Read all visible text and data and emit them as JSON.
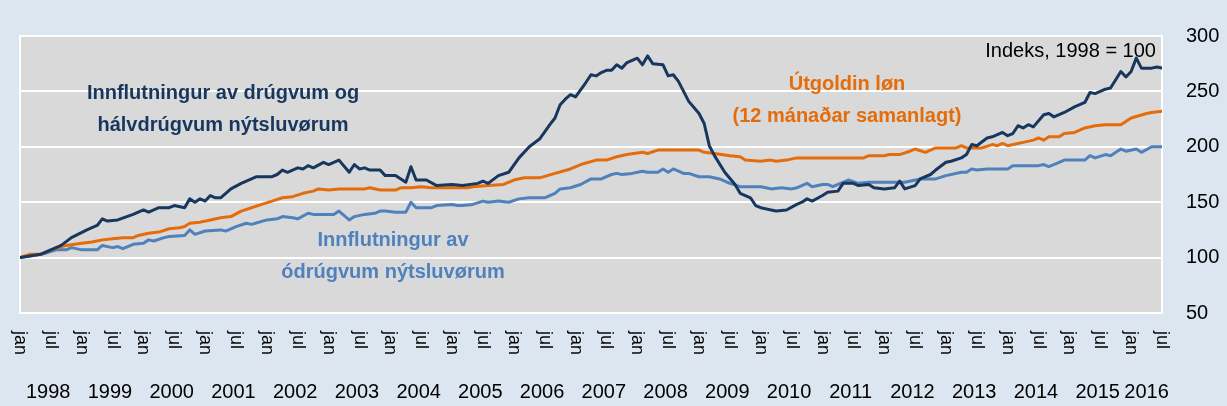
{
  "chart_data": {
    "type": "line",
    "annotations": [
      "Indeks, 1998 = 100"
    ],
    "xlim": [
      "1998-01",
      "2016-07"
    ],
    "xticks": [
      {
        "value": "1998-01",
        "label": "jan"
      },
      {
        "value": "1998-07",
        "label": "jul"
      },
      {
        "value": "1999-01",
        "label": "jan"
      },
      {
        "value": "1999-07",
        "label": "jul"
      },
      {
        "value": "2000-01",
        "label": "jan"
      },
      {
        "value": "2000-07",
        "label": "jul"
      },
      {
        "value": "2001-01",
        "label": "jan"
      },
      {
        "value": "2001-07",
        "label": "jul"
      },
      {
        "value": "2002-01",
        "label": "jan"
      },
      {
        "value": "2002-07",
        "label": "jul"
      },
      {
        "value": "2003-01",
        "label": "jan"
      },
      {
        "value": "2003-07",
        "label": "jul"
      },
      {
        "value": "2004-01",
        "label": "jan"
      },
      {
        "value": "2004-07",
        "label": "jul"
      },
      {
        "value": "2005-01",
        "label": "jan"
      },
      {
        "value": "2005-07",
        "label": "jul"
      },
      {
        "value": "2006-01",
        "label": "jan"
      },
      {
        "value": "2006-07",
        "label": "jul"
      },
      {
        "value": "2007-01",
        "label": "jan"
      },
      {
        "value": "2007-07",
        "label": "jul"
      },
      {
        "value": "2008-01",
        "label": "jan"
      },
      {
        "value": "2008-07",
        "label": "jul"
      },
      {
        "value": "2009-01",
        "label": "jan"
      },
      {
        "value": "2009-07",
        "label": "jul"
      },
      {
        "value": "2010-01",
        "label": "jan"
      },
      {
        "value": "2010-07",
        "label": "jul"
      },
      {
        "value": "2011-01",
        "label": "jan"
      },
      {
        "value": "2011-07",
        "label": "jul"
      },
      {
        "value": "2012-01",
        "label": "jan"
      },
      {
        "value": "2012-07",
        "label": "jul"
      },
      {
        "value": "2013-01",
        "label": "jan"
      },
      {
        "value": "2013-07",
        "label": "jul"
      },
      {
        "value": "2014-01",
        "label": "jan"
      },
      {
        "value": "2014-07",
        "label": "jul"
      },
      {
        "value": "2015-01",
        "label": "jan"
      },
      {
        "value": "2015-07",
        "label": "jul"
      },
      {
        "value": "2016-01",
        "label": "jan"
      },
      {
        "value": "2016-07",
        "label": "jul"
      }
    ],
    "x2lim": [
      "1998-01",
      "2016-07"
    ],
    "x2ticks": [
      {
        "value": "1998-06-16",
        "label": "1998"
      },
      {
        "value": "1999-06-16",
        "label": "1999"
      },
      {
        "value": "2000-06-16",
        "label": "2000"
      },
      {
        "value": "2001-06-16",
        "label": "2001"
      },
      {
        "value": "2002-06-16",
        "label": "2002"
      },
      {
        "value": "2003-06-16",
        "label": "2003"
      },
      {
        "value": "2004-06-16",
        "label": "2004"
      },
      {
        "value": "2005-06-16",
        "label": "2005"
      },
      {
        "value": "2006-06-16",
        "label": "2006"
      },
      {
        "value": "2007-06-16",
        "label": "2007"
      },
      {
        "value": "2008-06-16",
        "label": "2008"
      },
      {
        "value": "2009-06-16",
        "label": "2009"
      },
      {
        "value": "2010-06-16",
        "label": "2010"
      },
      {
        "value": "2011-06-16",
        "label": "2011"
      },
      {
        "value": "2012-06-16",
        "label": "2012"
      },
      {
        "value": "2013-06-16",
        "label": "2013"
      },
      {
        "value": "2014-06-16",
        "label": "2014"
      },
      {
        "value": "2015-06-16",
        "label": "2015"
      },
      {
        "value": "2016-04",
        "label": "2016"
      }
    ],
    "ylim": [
      50,
      300
    ],
    "yticks": [
      50,
      100,
      150,
      200,
      250,
      300
    ],
    "grid": "y",
    "marker": "none",
    "line_style": "solid",
    "series": [
      {
        "name": "Innflutningur av drúgvum og\nhálvdrúgvum nýtsluvørum",
        "color": "#17375e",
        "x": [
          "1998-01",
          "1998-05",
          "1998-09",
          "1998-11",
          "1999-02",
          "1999-04",
          "1999-05",
          "1999-06",
          "1999-08",
          "1999-11",
          "2000-01",
          "2000-02",
          "2000-04",
          "2000-06",
          "2000-07",
          "2000-09",
          "2000-10",
          "2000-11",
          "2000-12",
          "2001-01",
          "2001-02",
          "2001-03",
          "2001-04",
          "2001-06",
          "2001-08",
          "2001-10",
          "2001-11",
          "2002-02",
          "2002-03",
          "2002-04",
          "2002-05",
          "2002-07",
          "2002-08",
          "2002-09",
          "2002-10",
          "2002-12",
          "2003-01",
          "2003-03",
          "2003-05",
          "2003-06",
          "2003-07",
          "2003-08",
          "2003-09",
          "2003-11",
          "2003-12",
          "2004-02",
          "2004-04",
          "2004-05",
          "2004-06",
          "2004-08",
          "2004-10",
          "2005-01",
          "2005-03",
          "2005-06",
          "2005-07",
          "2005-08",
          "2005-10",
          "2005-12",
          "2006-02",
          "2006-04",
          "2006-06",
          "2006-08",
          "2006-09",
          "2006-10",
          "2006-11",
          "2006-12",
          "2007-01",
          "2007-03",
          "2007-04",
          "2007-05",
          "2007-06",
          "2007-07",
          "2007-08",
          "2007-09",
          "2007-10",
          "2007-11",
          "2008-01",
          "2008-02",
          "2008-03",
          "2008-04",
          "2008-06",
          "2008-07",
          "2008-08",
          "2008-09",
          "2008-11",
          "2009-01",
          "2009-02",
          "2009-03",
          "2009-04",
          "2009-06",
          "2009-08",
          "2009-09",
          "2009-10",
          "2009-11",
          "2009-12",
          "2010-01",
          "2010-03",
          "2010-04",
          "2010-06",
          "2010-08",
          "2010-09",
          "2010-10",
          "2010-11",
          "2011-01",
          "2011-02",
          "2011-04",
          "2011-05",
          "2011-07",
          "2011-08",
          "2011-10",
          "2011-11",
          "2012-01",
          "2012-03",
          "2012-04",
          "2012-05",
          "2012-07",
          "2012-08",
          "2012-10",
          "2012-11",
          "2013-01",
          "2013-02",
          "2013-04",
          "2013-05",
          "2013-06",
          "2013-07",
          "2013-09",
          "2013-10",
          "2013-12",
          "2014-01",
          "2014-02",
          "2014-03",
          "2014-04",
          "2014-05",
          "2014-06",
          "2014-08",
          "2014-09",
          "2014-10",
          "2014-12",
          "2015-02",
          "2015-04",
          "2015-05",
          "2015-06",
          "2015-08",
          "2015-09",
          "2015-11",
          "2015-12",
          "2016-01",
          "2016-02",
          "2016-03",
          "2016-05",
          "2016-06",
          "2016-07"
        ],
        "values": [
          100,
          103,
          111,
          118,
          125,
          129,
          135,
          133,
          134,
          139,
          143,
          141,
          145,
          145,
          147,
          145,
          153,
          150,
          153,
          151,
          156,
          154,
          154,
          162,
          167,
          171,
          173,
          173,
          175,
          179,
          177,
          181,
          180,
          183,
          181,
          186,
          184,
          188,
          177,
          184,
          180,
          181,
          179,
          179,
          174,
          174,
          168,
          182,
          170,
          170,
          165,
          166,
          165,
          167,
          169,
          167,
          174,
          177,
          190,
          200,
          207,
          220,
          226,
          238,
          243,
          247,
          245,
          258,
          265,
          264,
          267,
          269,
          269,
          274,
          271,
          276,
          280,
          274,
          282,
          275,
          274,
          264,
          265,
          259,
          241,
          230,
          221,
          201,
          192,
          177,
          166,
          158,
          156,
          154,
          147,
          145,
          143,
          142,
          143,
          148,
          150,
          153,
          151,
          156,
          159,
          160,
          167,
          167,
          165,
          166,
          163,
          162,
          163,
          169,
          162,
          165,
          171,
          175,
          179,
          186,
          187,
          190,
          193,
          202,
          201,
          208,
          209,
          213,
          210,
          212,
          219,
          217,
          220,
          218,
          229,
          230,
          227,
          231,
          236,
          240,
          249,
          248,
          252,
          253,
          268,
          263,
          268,
          280,
          271,
          271,
          272,
          271
        ]
      },
      {
        "name": "Útgoldin løn\n(12 mánaðar samanlagt)",
        "color": "#e46c0a",
        "x": [
          "1998-01",
          "1998-03",
          "1998-05",
          "1998-07",
          "1998-10",
          "1999-01",
          "1999-03",
          "1999-05",
          "1999-07",
          "1999-09",
          "1999-11",
          "1999-12",
          "2000-02",
          "2000-04",
          "2000-06",
          "2000-08",
          "2000-09",
          "2000-10",
          "2000-12",
          "2001-02",
          "2001-04",
          "2001-06",
          "2001-08",
          "2001-10",
          "2001-12",
          "2002-02",
          "2002-04",
          "2002-06",
          "2002-08",
          "2002-10",
          "2002-11",
          "2003-01",
          "2003-03",
          "2003-08",
          "2003-09",
          "2003-11",
          "2004-02",
          "2004-03",
          "2004-05",
          "2004-07",
          "2004-09",
          "2004-11",
          "2005-04",
          "2005-05",
          "2005-08",
          "2005-11",
          "2006-01",
          "2006-03",
          "2006-06",
          "2006-09",
          "2006-12",
          "2007-02",
          "2007-05",
          "2007-07",
          "2007-09",
          "2007-11",
          "2008-02",
          "2008-03",
          "2008-05",
          "2009-01",
          "2009-02",
          "2009-04",
          "2009-07",
          "2009-09",
          "2009-10",
          "2010-01",
          "2010-03",
          "2010-04",
          "2010-06",
          "2010-08",
          "2011-09",
          "2011-10",
          "2012-01",
          "2012-02",
          "2012-04",
          "2012-06",
          "2012-07",
          "2012-09",
          "2012-11",
          "2013-03",
          "2013-04",
          "2013-05",
          "2013-08",
          "2013-10",
          "2013-11",
          "2013-12",
          "2014-01",
          "2014-03",
          "2014-04",
          "2014-06",
          "2014-07",
          "2014-08",
          "2014-09",
          "2014-11",
          "2014-12",
          "2015-02",
          "2015-03",
          "2015-04",
          "2015-06",
          "2015-08",
          "2015-11",
          "2016-01",
          "2016-04",
          "2016-05",
          "2016-07"
        ],
        "values": [
          100,
          103,
          103,
          107,
          111,
          113,
          114,
          116,
          117,
          118,
          118,
          120,
          122,
          123,
          126,
          127,
          128,
          131,
          132,
          134,
          136,
          137,
          142,
          145,
          148,
          151,
          154,
          155,
          158,
          160,
          162,
          161,
          162,
          162,
          163,
          161,
          161,
          163,
          163,
          164,
          163,
          163,
          163,
          164,
          165,
          166,
          170,
          172,
          172,
          176,
          180,
          184,
          188,
          188,
          191,
          193,
          195,
          194,
          197,
          197,
          195,
          194,
          192,
          191,
          188,
          187,
          188,
          187,
          188,
          190,
          190,
          192,
          192,
          193,
          193,
          196,
          198,
          195,
          199,
          199,
          201,
          199,
          199,
          202,
          201,
          203,
          201,
          203,
          204,
          206,
          208,
          206,
          209,
          209,
          212,
          213,
          215,
          217,
          219,
          220,
          220,
          226,
          230,
          231,
          232
        ]
      },
      {
        "name": "Innflutningur av\nódrúgvum nýtsluvørum",
        "color": "#4f81bd",
        "x": [
          "1998-01",
          "1998-04",
          "1998-06",
          "1998-08",
          "1998-10",
          "1998-11",
          "1999-01",
          "1999-04",
          "1999-05",
          "1999-07",
          "1999-08",
          "1999-09",
          "1999-11",
          "2000-01",
          "2000-02",
          "2000-03",
          "2000-05",
          "2000-06",
          "2000-09",
          "2000-10",
          "2000-11",
          "2001-01",
          "2001-04",
          "2001-05",
          "2001-07",
          "2001-09",
          "2001-10",
          "2002-01",
          "2002-03",
          "2002-04",
          "2002-06",
          "2002-07",
          "2002-09",
          "2002-10",
          "2003-02",
          "2003-03",
          "2003-05",
          "2003-06",
          "2003-08",
          "2003-10",
          "2003-11",
          "2003-12",
          "2004-02",
          "2004-04",
          "2004-05",
          "2004-06",
          "2004-09",
          "2004-10",
          "2005-01",
          "2005-02",
          "2005-03",
          "2005-05",
          "2005-07",
          "2005-08",
          "2005-10",
          "2005-12",
          "2006-02",
          "2006-04",
          "2006-07",
          "2006-09",
          "2006-10",
          "2006-12",
          "2007-02",
          "2007-04",
          "2007-06",
          "2007-08",
          "2007-09",
          "2007-10",
          "2007-12",
          "2008-02",
          "2008-03",
          "2008-05",
          "2008-06",
          "2008-07",
          "2008-08",
          "2008-10",
          "2008-11",
          "2009-01",
          "2009-03",
          "2009-05",
          "2009-07",
          "2009-09",
          "2010-01",
          "2010-02",
          "2010-03",
          "2010-05",
          "2010-07",
          "2010-08",
          "2010-10",
          "2010-11",
          "2011-01",
          "2011-02",
          "2011-03",
          "2011-06",
          "2011-08",
          "2011-10",
          "2012-05",
          "2012-08",
          "2012-11",
          "2013-01",
          "2013-04",
          "2013-05",
          "2013-06",
          "2013-07",
          "2013-09",
          "2014-01",
          "2014-02",
          "2014-07",
          "2014-08",
          "2014-09",
          "2014-11",
          "2014-12",
          "2015-04",
          "2015-05",
          "2015-06",
          "2015-08",
          "2015-09",
          "2015-11",
          "2015-12",
          "2016-02",
          "2016-03",
          "2016-05",
          "2016-07"
        ],
        "values": [
          100,
          102,
          104,
          107,
          107,
          109,
          107,
          107,
          111,
          109,
          110,
          108,
          112,
          113,
          116,
          115,
          118,
          119,
          120,
          125,
          121,
          124,
          125,
          124,
          128,
          131,
          130,
          134,
          135,
          137,
          136,
          135,
          140,
          139,
          139,
          142,
          134,
          137,
          139,
          140,
          142,
          142,
          141,
          141,
          150,
          145,
          145,
          147,
          148,
          147,
          147,
          148,
          151,
          150,
          151,
          150,
          153,
          154,
          154,
          158,
          162,
          163,
          166,
          171,
          171,
          175,
          176,
          175,
          176,
          178,
          177,
          177,
          180,
          177,
          180,
          176,
          176,
          173,
          173,
          171,
          167,
          164,
          164,
          163,
          162,
          163,
          162,
          163,
          167,
          164,
          166,
          166,
          164,
          170,
          167,
          168,
          168,
          171,
          171,
          174,
          177,
          177,
          180,
          179,
          180,
          180,
          183,
          183,
          184,
          182,
          186,
          188,
          188,
          192,
          190,
          193,
          192,
          198,
          196,
          198,
          195,
          200,
          200
        ]
      }
    ]
  }
}
